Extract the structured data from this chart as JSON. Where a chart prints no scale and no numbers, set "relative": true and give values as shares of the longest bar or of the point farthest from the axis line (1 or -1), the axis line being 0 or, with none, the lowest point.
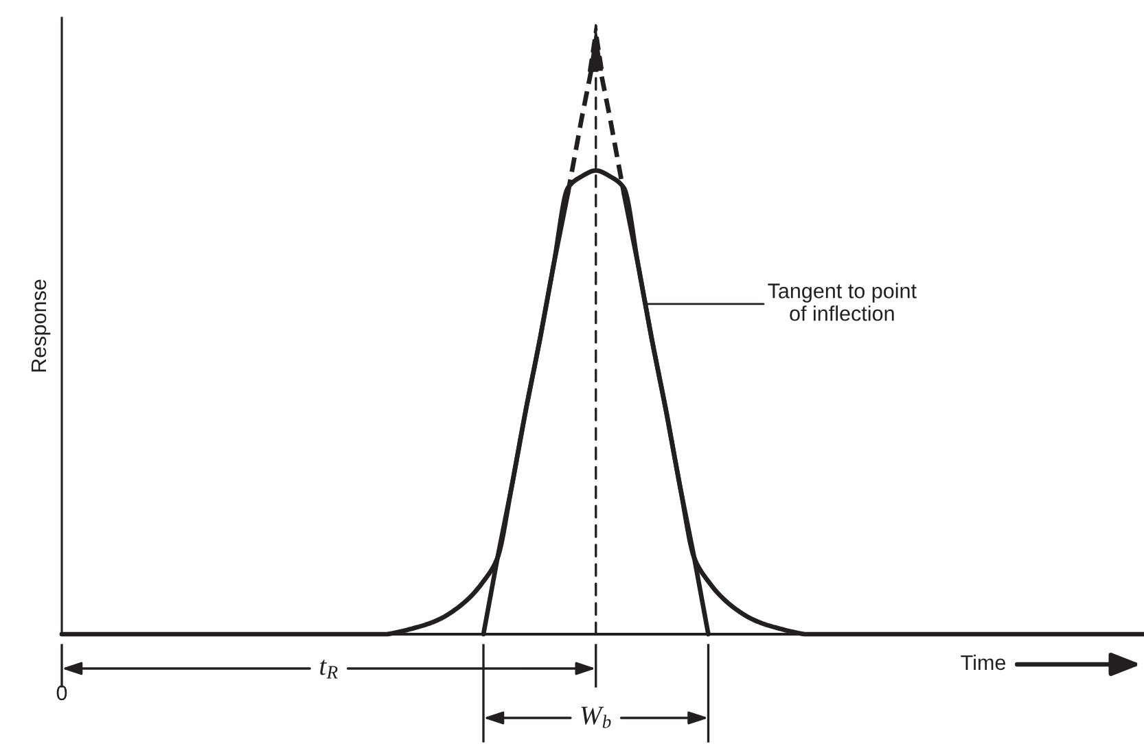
{
  "chart_data": {
    "type": "line",
    "relative": true,
    "xlabel": "Time",
    "ylabel": "Response",
    "categories": [
      null,
      null,
      null,
      null,
      null,
      null,
      null,
      null,
      null,
      null,
      null,
      null,
      null,
      null,
      null,
      null,
      null,
      null,
      null,
      null,
      null,
      null,
      null,
      null,
      null,
      null,
      null,
      null,
      null,
      null,
      null,
      null,
      null,
      null,
      null,
      null,
      null,
      null,
      null,
      null,
      null,
      null,
      null,
      null,
      null,
      null,
      null,
      null,
      null,
      null,
      null,
      null,
      null,
      null,
      null,
      null,
      null,
      null,
      null,
      null,
      null,
      null,
      null,
      null,
      null,
      null,
      null,
      null,
      null,
      null,
      null,
      null,
      null,
      null,
      null,
      null,
      null,
      null
    ],
    "series": [
      {
        "color": "#231f20",
        "values": [
          0,
          0,
          0,
          0,
          0,
          0,
          0,
          0,
          0,
          0,
          0,
          0,
          0,
          0,
          0,
          0,
          0,
          0,
          0,
          0,
          0,
          0,
          0,
          0,
          0.004,
          0.01,
          0.017,
          0.027,
          0.042,
          0.062,
          0.09,
          0.13,
          0.25,
          0.38,
          0.5,
          0.63,
          0.76,
          0.78,
          0.79,
          0.78,
          0.76,
          0.63,
          0.5,
          0.38,
          0.25,
          0.13,
          0.09,
          0.062,
          0.042,
          0.027,
          0.017,
          0.01,
          0.004,
          0,
          0,
          0,
          0,
          0,
          0,
          0,
          0,
          0,
          0,
          0,
          0,
          0,
          0,
          0,
          0,
          0,
          0,
          0,
          0,
          0,
          0,
          0,
          0,
          0
        ]
      },
      {
        "color": "#231f20",
        "values": [
          null,
          null,
          null,
          null,
          null,
          null,
          null,
          null,
          null,
          null,
          null,
          null,
          null,
          null,
          null,
          null,
          null,
          null,
          null,
          null,
          null,
          null,
          null,
          null,
          null,
          null,
          null,
          null,
          null,
          null,
          0,
          0.13,
          0.25,
          0.38,
          0.5,
          0.63,
          0.75,
          null,
          null,
          null,
          0.75,
          0.63,
          0.5,
          0.38,
          0.25,
          0.13,
          0,
          null,
          null,
          null,
          null,
          null,
          null,
          null,
          null,
          null,
          null,
          null,
          null,
          null,
          null,
          null,
          null,
          null,
          null,
          null,
          null,
          null,
          null,
          null,
          null,
          null,
          null,
          null,
          null,
          null,
          null,
          null
        ]
      },
      {
        "color": "#231f20",
        "line_style": "dashed",
        "values": [
          null,
          null,
          null,
          null,
          null,
          null,
          null,
          null,
          null,
          null,
          null,
          null,
          null,
          null,
          null,
          null,
          null,
          null,
          null,
          null,
          null,
          null,
          null,
          null,
          null,
          null,
          null,
          null,
          null,
          null,
          null,
          null,
          null,
          null,
          null,
          null,
          0.75,
          0.88,
          1,
          0.88,
          0.75,
          null,
          null,
          null,
          null,
          null,
          null,
          null,
          null,
          null,
          null,
          null,
          null,
          null,
          null,
          null,
          null,
          null,
          null,
          null,
          null,
          null,
          null,
          null,
          null,
          null,
          null,
          null,
          null,
          null,
          null,
          null,
          null,
          null,
          null,
          null,
          null,
          null
        ]
      }
    ],
    "annotations": [
      "Tangent to point\nof inflection",
      "t$_{R}$",
      "W$_{b}$",
      "0"
    ]
  }
}
